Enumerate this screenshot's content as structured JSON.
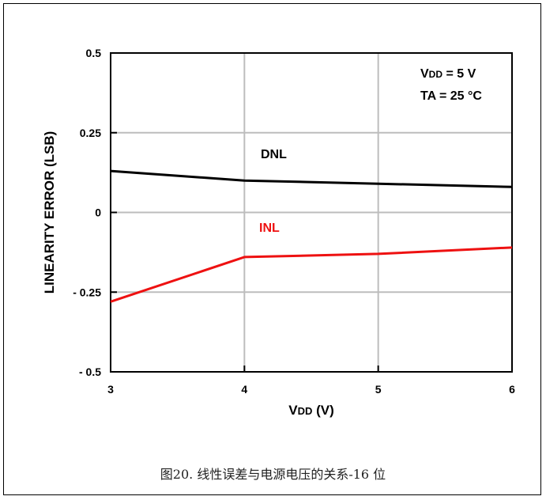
{
  "chart_data": {
    "type": "line",
    "xlabel_main": "V",
    "xlabel_sub": "DD",
    "xlabel_rest": " (V)",
    "ylabel": "LINEARITY  ERROR (LSB)",
    "xlim": [
      3,
      6
    ],
    "ylim": [
      -0.5,
      0.5
    ],
    "x_ticks": [
      3,
      4,
      5,
      6
    ],
    "x_tick_labels": [
      "3",
      "4",
      "5",
      "6"
    ],
    "y_ticks": [
      0.5,
      0.25,
      0,
      -0.25,
      -0.5
    ],
    "y_tick_labels": [
      "0.5",
      "0.25",
      "0",
      "- 0.25",
      "- 0.5"
    ],
    "grid": true,
    "series": [
      {
        "name": "DNL",
        "color": "#000000",
        "x": [
          3,
          4,
          5,
          6
        ],
        "y": [
          0.13,
          0.1,
          0.09,
          0.08
        ]
      },
      {
        "name": "INL",
        "color": "#ee1111",
        "x": [
          3,
          4,
          5,
          6
        ],
        "y": [
          -0.28,
          -0.14,
          -0.13,
          -0.11
        ]
      }
    ],
    "conditions": {
      "line1_main": "V",
      "line1_sub": "DD",
      "line1_rest": " = 5 V",
      "line2": "TA = 25 °C"
    }
  },
  "caption": "图20. 线性误差与电源电压的关系-16 位"
}
